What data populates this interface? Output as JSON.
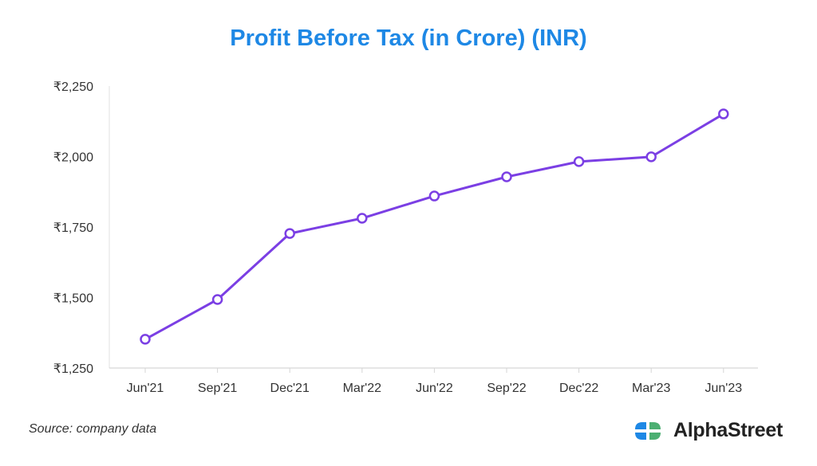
{
  "chart_data": {
    "type": "line",
    "title": "Profit Before Tax (in Crore) (INR)",
    "xlabel": "",
    "ylabel": "",
    "categories": [
      "Jun'21",
      "Sep'21",
      "Dec'21",
      "Mar'22",
      "Jun'22",
      "Sep'22",
      "Dec'22",
      "Mar'23",
      "Jun'23"
    ],
    "series": [
      {
        "name": "Profit Before Tax",
        "values": [
          1352,
          1493,
          1727,
          1781,
          1860,
          1928,
          1982,
          1999,
          2151
        ],
        "color": "#7b3fe4"
      }
    ],
    "ylim": [
      1250,
      2250
    ],
    "yticks": [
      1250,
      1500,
      1750,
      2000,
      2250
    ],
    "ytick_labels": [
      "₹1,250",
      "₹1,500",
      "₹1,750",
      "₹2,000",
      "₹2,250"
    ],
    "grid": false,
    "legend": "none"
  },
  "footer": {
    "source": "Source: company data",
    "brand": "AlphaStreet"
  },
  "colors": {
    "title": "#1e88e5",
    "line": "#7b3fe4",
    "logo_blue": "#1e88e5",
    "logo_green": "#4caf72"
  }
}
